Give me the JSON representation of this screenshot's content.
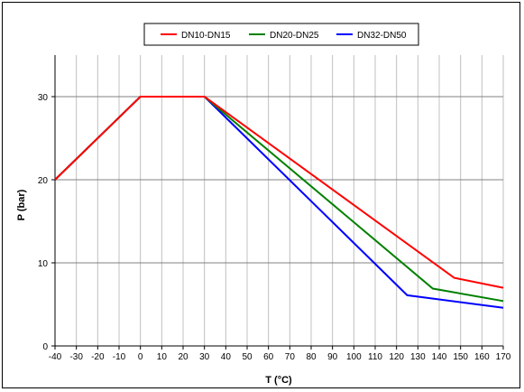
{
  "chart_data": {
    "type": "line",
    "title": "",
    "xlabel": "T (°C)",
    "ylabel": "P (bar)",
    "xlim": [
      -40,
      170
    ],
    "ylim": [
      0,
      35
    ],
    "x_ticks": [
      -40,
      -30,
      -20,
      -10,
      0,
      10,
      20,
      30,
      40,
      50,
      60,
      70,
      80,
      90,
      100,
      110,
      120,
      130,
      140,
      150,
      160,
      170
    ],
    "y_ticks": [
      0,
      10,
      20,
      30
    ],
    "grid": true,
    "legend_position": "top-center",
    "series": [
      {
        "name": "DN10-DN15",
        "color": "#ff0000",
        "points": [
          [
            -40,
            20
          ],
          [
            0,
            30
          ],
          [
            30,
            30
          ],
          [
            147,
            8.2
          ],
          [
            170,
            7.0
          ]
        ]
      },
      {
        "name": "DN20-DN25",
        "color": "#008000",
        "points": [
          [
            -40,
            20
          ],
          [
            0,
            30
          ],
          [
            30,
            30
          ],
          [
            137,
            6.9
          ],
          [
            170,
            5.4
          ]
        ]
      },
      {
        "name": "DN32-DN50",
        "color": "#0000ff",
        "points": [
          [
            -40,
            20
          ],
          [
            0,
            30
          ],
          [
            30,
            30
          ],
          [
            125,
            6.1
          ],
          [
            170,
            4.6
          ]
        ]
      }
    ]
  }
}
